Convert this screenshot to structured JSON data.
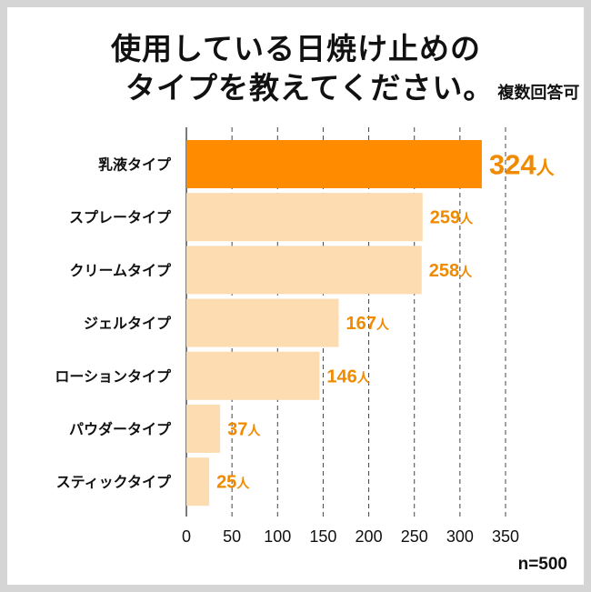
{
  "title": {
    "line1": "使用している日焼け止めの",
    "line2": "タイプを教えてください。",
    "note": "複数回答可"
  },
  "sample_size": "n=500",
  "chart_data": {
    "type": "bar",
    "orientation": "horizontal",
    "categories": [
      "乳液タイプ",
      "スプレータイプ",
      "クリームタイプ",
      "ジェルタイプ",
      "ローションタイプ",
      "パウダータイプ",
      "スティックタイプ"
    ],
    "values": [
      324,
      259,
      258,
      167,
      146,
      37,
      25
    ],
    "value_labels": [
      "324",
      "259",
      "258",
      "167",
      "146",
      "37",
      "25"
    ],
    "unit": "人",
    "xlim": [
      0,
      350
    ],
    "ticks": [
      "0",
      "50",
      "100",
      "150",
      "200",
      "250",
      "300",
      "350"
    ],
    "grid": true,
    "colors": {
      "highlight": "#ff8c00",
      "bar": "#fcdcb0",
      "label": "#f08a00",
      "grid": "#444444"
    }
  }
}
